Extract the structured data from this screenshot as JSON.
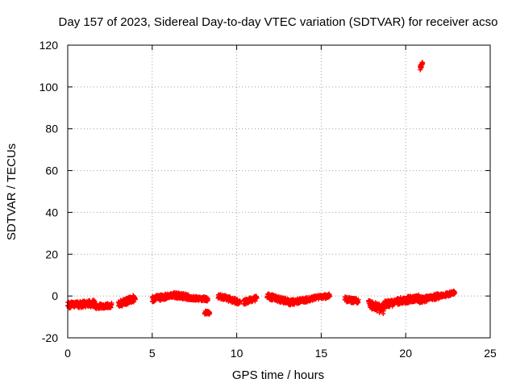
{
  "chart_data": {
    "type": "scatter",
    "title": "Day 157 of 2023, Sidereal Day-to-day VTEC variation (SDTVAR) for receiver acso",
    "xlabel": "GPS time / hours",
    "ylabel": "SDTVAR / TECUs",
    "xlim": [
      0,
      25
    ],
    "ylim": [
      -20,
      120
    ],
    "xticks": [
      0,
      5,
      10,
      15,
      20,
      25
    ],
    "yticks": [
      -20,
      0,
      20,
      40,
      60,
      80,
      100,
      120
    ],
    "grid": true,
    "marker_color": "#ff0000",
    "marker": "plus",
    "series": [
      {
        "name": "SDTVAR",
        "segments": [
          {
            "x_start": 0.0,
            "x_end": 1.6,
            "y_start": -4.5,
            "y_end": -3.5,
            "jitter": 1.6
          },
          {
            "x_start": 1.6,
            "x_end": 2.6,
            "y_start": -5.0,
            "y_end": -4.5,
            "jitter": 1.2
          },
          {
            "x_start": 3.0,
            "x_end": 4.0,
            "y_start": -4.0,
            "y_end": -1.0,
            "jitter": 1.6
          },
          {
            "x_start": 5.0,
            "x_end": 6.2,
            "y_start": -1.5,
            "y_end": 0.5,
            "jitter": 1.4
          },
          {
            "x_start": 6.2,
            "x_end": 7.2,
            "y_start": 0.5,
            "y_end": -0.5,
            "jitter": 1.4
          },
          {
            "x_start": 7.2,
            "x_end": 8.3,
            "y_start": -1.0,
            "y_end": -1.5,
            "jitter": 1.0
          },
          {
            "x_start": 8.1,
            "x_end": 8.4,
            "y_start": -8.0,
            "y_end": -8.0,
            "jitter": 0.8
          },
          {
            "x_start": 8.9,
            "x_end": 10.2,
            "y_start": 0.0,
            "y_end": -3.0,
            "jitter": 1.2
          },
          {
            "x_start": 10.4,
            "x_end": 11.2,
            "y_start": -3.0,
            "y_end": -1.0,
            "jitter": 1.2
          },
          {
            "x_start": 11.8,
            "x_end": 13.2,
            "y_start": 0.0,
            "y_end": -3.0,
            "jitter": 1.4
          },
          {
            "x_start": 13.2,
            "x_end": 14.5,
            "y_start": -3.0,
            "y_end": -1.5,
            "jitter": 1.2
          },
          {
            "x_start": 14.5,
            "x_end": 15.5,
            "y_start": -1.0,
            "y_end": 0.0,
            "jitter": 1.0
          },
          {
            "x_start": 16.4,
            "x_end": 17.2,
            "y_start": -1.5,
            "y_end": -2.5,
            "jitter": 1.2
          },
          {
            "x_start": 17.8,
            "x_end": 18.7,
            "y_start": -4.0,
            "y_end": -6.5,
            "jitter": 2.2
          },
          {
            "x_start": 18.7,
            "x_end": 19.5,
            "y_start": -4.0,
            "y_end": -3.0,
            "jitter": 1.6
          },
          {
            "x_start": 19.5,
            "x_end": 20.8,
            "y_start": -2.5,
            "y_end": -1.0,
            "jitter": 1.6
          },
          {
            "x_start": 20.8,
            "x_end": 22.0,
            "y_start": -2.0,
            "y_end": 0.0,
            "jitter": 1.4
          },
          {
            "x_start": 22.0,
            "x_end": 22.9,
            "y_start": 0.0,
            "y_end": 1.5,
            "jitter": 1.0
          },
          {
            "x_start": 20.85,
            "x_end": 21.0,
            "y_start": 109.0,
            "y_end": 112.0,
            "jitter": 1.2
          }
        ]
      }
    ]
  }
}
